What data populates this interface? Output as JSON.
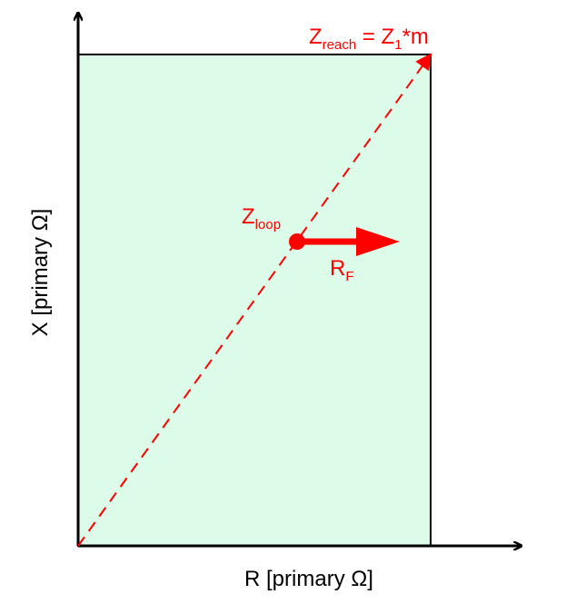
{
  "labels": {
    "x_axis": "R [primary Ω]",
    "y_axis": "X [primary Ω]",
    "zreach_main": "Z",
    "zreach_sub": "reach",
    "zreach_eq": " = Z",
    "zreach_sub2": "1",
    "zreach_tail": "*m",
    "zloop_main": "Z",
    "zloop_sub": "loop",
    "rf_main": "R",
    "rf_sub": "F"
  },
  "colors": {
    "region_fill": "#ddfbe9",
    "accent": "#ff0000",
    "axis": "#000000"
  }
}
